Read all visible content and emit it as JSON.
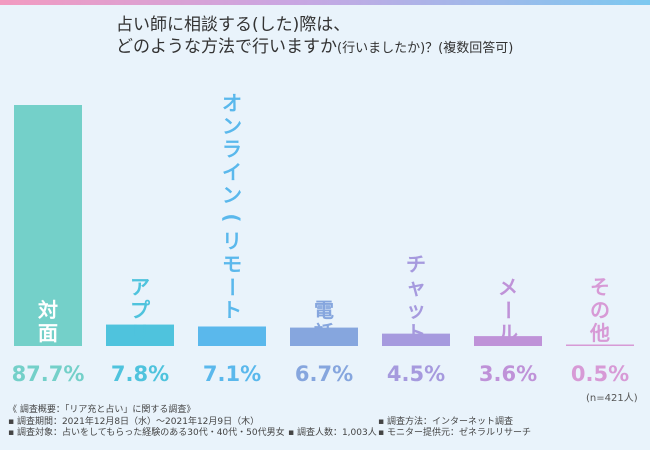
{
  "title": {
    "line1": "占い師に相談する(した)際は、",
    "line2_main": "どのような方法で行いますか",
    "line2_sub": "(行いましたか)？(複数回答可)"
  },
  "n_note": "(n=421人)",
  "footnote": {
    "heading": "《 調査概要：「リア充と占い」に関する調査》",
    "period": "▪ 調査期間：2021年12月8日（水）～2021年12月9日（木）",
    "method": "▪ 調査方法：インターネット調査",
    "target": "▪ 調査対象：占いをしてもらった経験のある30代・40代・50代男女",
    "count": "▪ 調査人数：1,003人",
    "provider": "▪ モニター提供元：ゼネラルリサーチ"
  },
  "chart_data": {
    "type": "bar",
    "title": "占い師に相談する(した)際は、どのような方法で行いますか(行いましたか)？(複数回答可)",
    "categories": [
      "対面",
      "アプリ",
      "オンライン(リモート)",
      "電話",
      "チャット",
      "メール",
      "その他"
    ],
    "values": [
      87.7,
      7.8,
      7.1,
      6.7,
      4.5,
      3.6,
      0.5
    ],
    "value_labels": [
      "87.7%",
      "7.8%",
      "7.1%",
      "6.7%",
      "4.5%",
      "3.6%",
      "0.5%"
    ],
    "colors": [
      "#74d0c9",
      "#4fc3dd",
      "#5ab8ec",
      "#86a6de",
      "#a69ade",
      "#bf92d8",
      "#d79ad6"
    ],
    "ylim": [
      0,
      87.7
    ],
    "xlabel": "",
    "ylabel": ""
  }
}
